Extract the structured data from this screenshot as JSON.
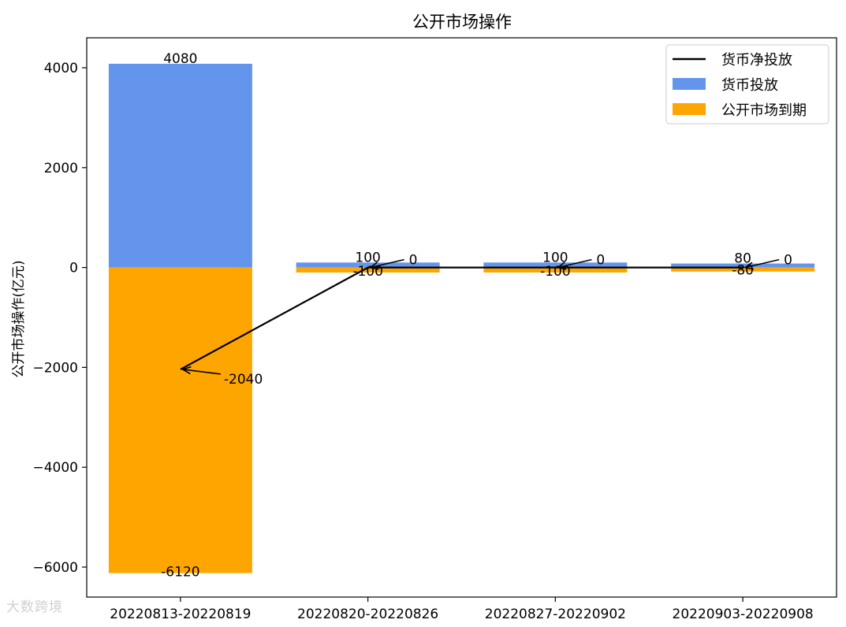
{
  "chart_data": {
    "type": "bar",
    "title": "公开市场操作",
    "ylabel": "公开市场操作(亿元)",
    "xlabel": "",
    "categories": [
      "20220813-20220819",
      "20220820-20220826",
      "20220827-20220902",
      "20220903-20220908"
    ],
    "ylim": [
      -6600,
      4600
    ],
    "yticks": [
      -6000,
      -4000,
      -2000,
      0,
      2000,
      4000
    ],
    "ytick_labels": [
      "−6000",
      "−4000",
      "−2000",
      "0",
      "2000",
      "4000"
    ],
    "series": [
      {
        "name": "货币投放",
        "kind": "bar",
        "color": "#6495ED",
        "values": [
          4080,
          100,
          100,
          80
        ]
      },
      {
        "name": "公开市场到期",
        "kind": "bar",
        "color": "#FFA500",
        "values": [
          -6120,
          -100,
          -100,
          -80
        ]
      },
      {
        "name": "货币净投放",
        "kind": "line",
        "color": "#000000",
        "values": [
          -2040,
          0,
          0,
          0
        ]
      }
    ],
    "bar_labels_top": [
      "4080",
      "100",
      "100",
      "80"
    ],
    "bar_labels_bottom": [
      "-6120",
      "-100",
      "-100",
      "-80"
    ],
    "net_labels": [
      "-2040",
      "0",
      "0",
      "0"
    ],
    "legend_position": "top-right",
    "grid": false
  },
  "watermark": "大数跨境"
}
